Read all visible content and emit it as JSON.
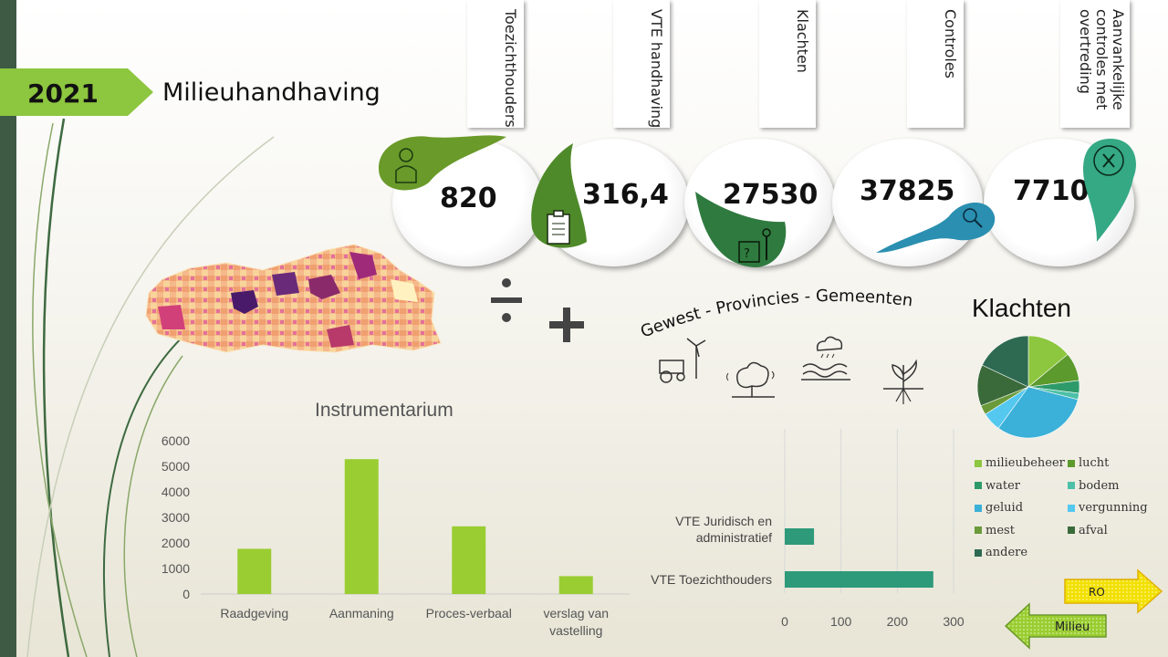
{
  "header": {
    "year": "2021",
    "title": "Milieuhandhaving"
  },
  "kpis": [
    {
      "label": "Toezichthouders",
      "value": "820",
      "icon": "person-icon",
      "color": "#6a9a2a"
    },
    {
      "label": "VTE handhaving",
      "value": "316,4",
      "icon": "clipboard-icon",
      "color": "#4f8a2a"
    },
    {
      "label": "Klachten",
      "value": "27530",
      "icon": "complaint-icon",
      "color": "#2f7a3f"
    },
    {
      "label": "Controles",
      "value": "37825",
      "icon": "magnifier-icon",
      "color": "#2a8fb0"
    },
    {
      "label_lines": [
        "Aanvankelijke",
        "controles met",
        "overtreding"
      ],
      "value": "7710",
      "icon": "violation-x-icon",
      "color": "#35a884"
    }
  ],
  "map": {
    "icon": "flanders-municipality-map"
  },
  "operators": {
    "divide": "÷",
    "plus": "+"
  },
  "regions": {
    "text": "Gewest  - Provincies - Gemeenten",
    "icons": [
      "farm-tractor-windmill-icon",
      "noise-tree-icon",
      "water-weather-icon",
      "soil-plant-icon"
    ]
  },
  "instrumentarium": {
    "title": "Instrumentarium",
    "chart_data": {
      "type": "bar",
      "categories": [
        "Raadgeving",
        "Aanmaning",
        "Proces-verbaal",
        "verslag van vastelling"
      ],
      "category_lines": [
        [
          "Raadgeving"
        ],
        [
          "Aanmaning"
        ],
        [
          "Proces-verbaal"
        ],
        [
          "verslag van",
          "vastelling"
        ]
      ],
      "values": [
        1770,
        5280,
        2650,
        700
      ],
      "ylim": [
        0,
        6000
      ],
      "yticks": [
        0,
        1000,
        2000,
        3000,
        4000,
        5000,
        6000
      ],
      "color": "#9acd32"
    }
  },
  "vte": {
    "chart_data": {
      "type": "bar",
      "orientation": "horizontal",
      "categories": [
        "VTE Juridisch en administratief",
        "VTE Toezichthouders"
      ],
      "category_lines": [
        [
          "VTE Juridisch en",
          "administratief"
        ],
        [
          "VTE Toezichthouders"
        ]
      ],
      "values": [
        52,
        264
      ],
      "xlim": [
        0,
        300
      ],
      "xticks": [
        0,
        100,
        200,
        300
      ],
      "color": "#2e9a7a"
    }
  },
  "klachten": {
    "title": "Klachten",
    "chart_data": {
      "type": "pie",
      "labels": [
        "milieubeheer",
        "lucht",
        "water",
        "bodem",
        "geluid",
        "vergunning",
        "mest",
        "afval",
        "andere"
      ],
      "values": [
        14,
        9,
        4,
        2,
        31,
        6,
        3,
        13,
        18
      ],
      "colors": [
        "#8dc63f",
        "#5d9a2e",
        "#2e9a6a",
        "#4dc0a8",
        "#3bb0d8",
        "#55c8f0",
        "#6a9a3a",
        "#3a6a3a",
        "#2e6a52"
      ]
    }
  },
  "nav": {
    "next_label": "RO",
    "prev_label": "Milieu"
  }
}
